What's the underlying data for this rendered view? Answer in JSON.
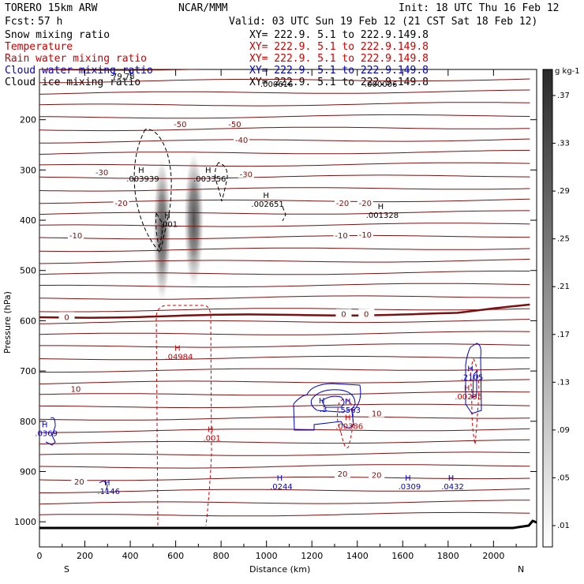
{
  "header": {
    "model": "TORERO  15km ARW",
    "center": "NCAR/MMM",
    "init": "Init: 18 UTC Thu 16 Feb 12",
    "fcst_label": "Fcst:",
    "fcst_value": "57 h",
    "valid": "Valid: 03 UTC Sun 19 Feb 12 (21 CST Sat 18 Feb 12)"
  },
  "fields": [
    {
      "name": "Snow mixing ratio",
      "color": "#000000",
      "xy": "XY= 222.9.  5.1 to 222.9.149.8"
    },
    {
      "name": "Temperature",
      "color": "#cc0000",
      "xy": "XY= 222.9.  5.1 to 222.9.149.8"
    },
    {
      "name": "Rain water mixing ratio",
      "color": "#cc0000",
      "xy": "XY= 222.9.  5.1 to 222.9.149.8"
    },
    {
      "name": "Cloud water mixing ratio",
      "color": "#0000cc",
      "xy": "XY= 222.9.  5.1 to 222.9.149.8"
    },
    {
      "name": "Cloud ice mixing ratio",
      "color": "#000000",
      "xy": "XY= 222.9.  5.1 to 222.9.149.8"
    }
  ],
  "overlap_texts": [
    "79.78",
    ".000616",
    ".000006"
  ],
  "chart_data": {
    "type": "contour-cross-section",
    "xlabel": "Distance (km)",
    "ylabel": "Pressure (hPa)",
    "xlim": [
      0,
      2190
    ],
    "ylim": [
      1050,
      100
    ],
    "x_ticks": [
      0,
      200,
      400,
      600,
      800,
      1000,
      1200,
      1400,
      1600,
      1800,
      2000
    ],
    "y_ticks": [
      200,
      300,
      400,
      500,
      600,
      700,
      800,
      900,
      1000
    ],
    "end_labels": {
      "left": "S",
      "right": "N"
    },
    "colorbar": {
      "unit": "g kg-1",
      "levels": [
        ".01",
        ".05",
        ".09",
        ".13",
        ".17",
        ".21",
        ".25",
        ".29",
        ".33",
        ".37"
      ]
    },
    "temperature_contours": [
      {
        "value": -50,
        "labels": [
          {
            "text": "-50",
            "x": 620,
            "p": 208
          },
          {
            "text": "-50",
            "x": 860,
            "p": 208
          }
        ]
      },
      {
        "value": -40,
        "labels": [
          {
            "text": "-40",
            "x": 890,
            "p": 240
          }
        ]
      },
      {
        "value": -30,
        "labels": [
          {
            "text": "-30",
            "x": 275,
            "p": 304
          },
          {
            "text": "-30",
            "x": 910,
            "p": 308
          }
        ]
      },
      {
        "value": -20,
        "labels": [
          {
            "text": "-20",
            "x": 360,
            "p": 365
          },
          {
            "text": "-20",
            "x": 1335,
            "p": 365
          },
          {
            "text": "-20",
            "x": 1435,
            "p": 365
          }
        ]
      },
      {
        "value": -10,
        "labels": [
          {
            "text": "-10",
            "x": 160,
            "p": 430
          },
          {
            "text": "-10",
            "x": 1330,
            "p": 430
          },
          {
            "text": "-10",
            "x": 1435,
            "p": 428
          }
        ]
      },
      {
        "value": 0,
        "labels": [
          {
            "text": "0",
            "x": 120,
            "p": 592
          },
          {
            "text": "0",
            "x": 1340,
            "p": 586
          },
          {
            "text": "0",
            "x": 1440,
            "p": 586
          }
        ]
      },
      {
        "value": 10,
        "labels": [
          {
            "text": "10",
            "x": 160,
            "p": 735
          },
          {
            "text": "10",
            "x": 1485,
            "p": 784
          }
        ]
      },
      {
        "value": 20,
        "labels": [
          {
            "text": "20",
            "x": 175,
            "p": 920
          },
          {
            "text": "20",
            "x": 1335,
            "p": 904
          },
          {
            "text": "20",
            "x": 1485,
            "p": 906
          }
        ]
      }
    ],
    "maxima": [
      {
        "field": "cloud ice",
        "color": "#000000",
        "text": ".003939",
        "x": 455,
        "p": 320
      },
      {
        "field": "cloud ice",
        "color": "#000000",
        "text": ".003356",
        "x": 750,
        "p": 320
      },
      {
        "field": "cloud ice",
        "color": "#000000",
        "text": ".002651",
        "x": 1005,
        "p": 370
      },
      {
        "field": "cloud ice",
        "color": "#000000",
        "text": ".001328",
        "x": 1510,
        "p": 392
      },
      {
        "field": "cloud ice",
        "color": "#000000",
        "text": ".001",
        "x": 570,
        "p": 410
      },
      {
        "field": "rain water",
        "color": "#cc0000",
        "text": ".04984",
        "x": 615,
        "p": 674
      },
      {
        "field": "rain water",
        "color": "#cc0000",
        "text": ".001",
        "x": 760,
        "p": 836
      },
      {
        "field": "rain water",
        "color": "#cc0000",
        "text": ".00386",
        "x": 1365,
        "p": 812
      },
      {
        "field": "rain water",
        "color": "#cc0000",
        "text": ".00295",
        "x": 1890,
        "p": 753
      },
      {
        "field": "cloud water",
        "color": "#0000cc",
        "text": ".0369",
        "x": 30,
        "p": 826
      },
      {
        "field": "cloud water",
        "color": "#0000cc",
        "text": ".1146",
        "x": 305,
        "p": 942
      },
      {
        "field": "cloud water",
        "color": "#0000cc",
        "text": ".0244",
        "x": 1065,
        "p": 932
      },
      {
        "field": "cloud water",
        "color": "#0000cc",
        "text": ".0309",
        "x": 1630,
        "p": 932
      },
      {
        "field": "cloud water",
        "color": "#0000cc",
        "text": ".0432",
        "x": 1820,
        "p": 932
      },
      {
        "field": "cloud water",
        "color": "#0000cc",
        "text": ".2105",
        "x": 1905,
        "p": 715
      },
      {
        "field": "cloud water",
        "color": "#0000cc",
        "text": ".5563",
        "x": 1365,
        "p": 780
      },
      {
        "field": "cloud water",
        "color": "#0000cc",
        "text": ".3",
        "x": 1250,
        "p": 778
      }
    ],
    "snow_shading": [
      {
        "x": 540,
        "p": 420,
        "rx": 40,
        "rp": 150
      },
      {
        "x": 680,
        "p": 400,
        "rx": 45,
        "rp": 140
      }
    ]
  }
}
